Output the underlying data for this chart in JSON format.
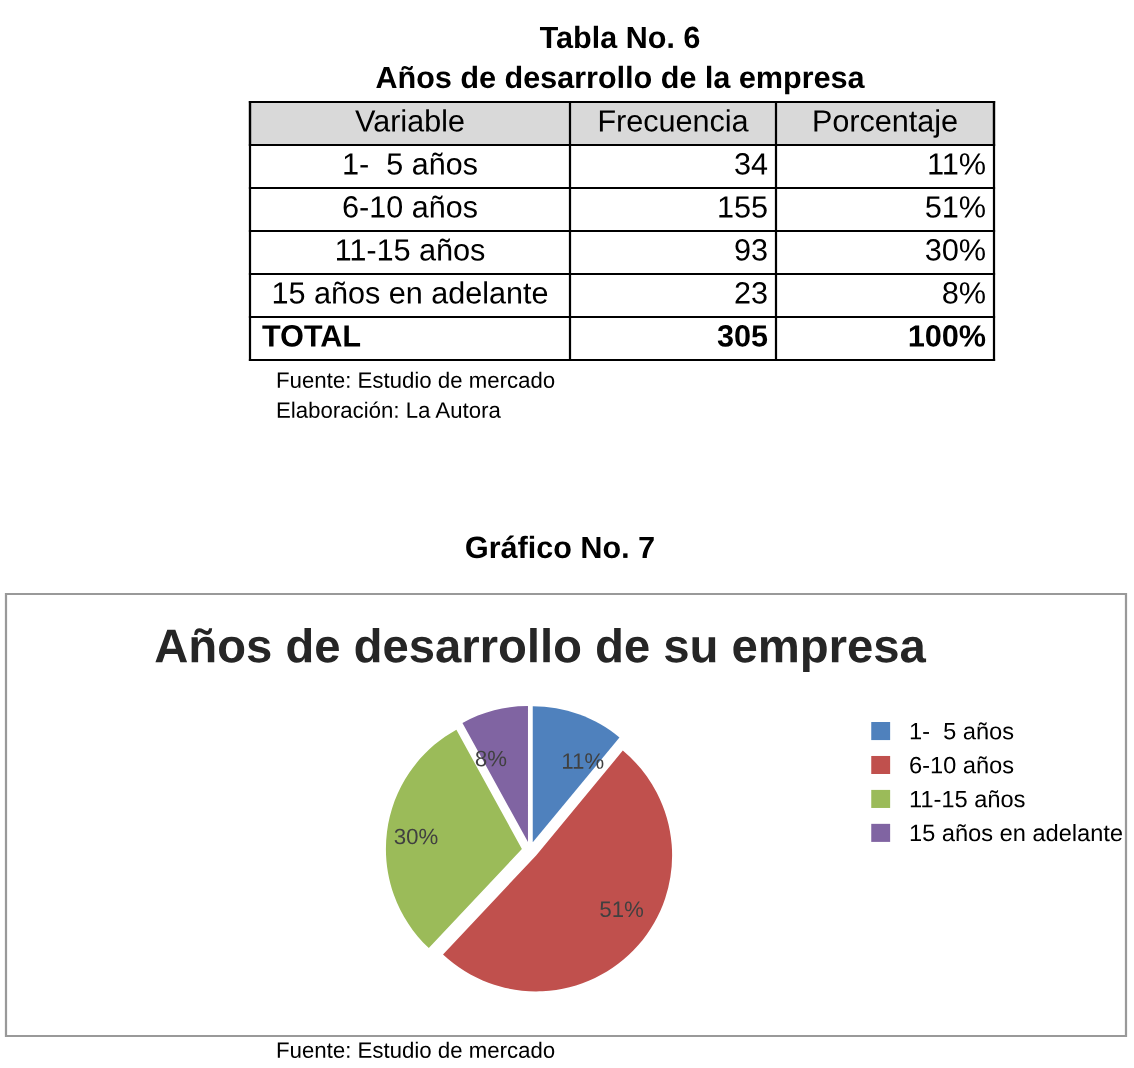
{
  "chart_data": [
    {
      "type": "other",
      "title": "Tabla No. 6",
      "subtitle": "Años de desarrollo de la empresa",
      "categories": [
        "Variable",
        "Frecuencia",
        "Porcentaje"
      ],
      "annotations": [
        "1-  5 años",
        "34",
        "11%",
        "6-10 años",
        "155",
        "51%",
        "11-15 años",
        "93",
        "30%",
        "15 años en adelante",
        "23",
        "8%",
        "TOTAL",
        "305",
        "100%",
        "Fuente: Estudio de mercado",
        "Elaboración: La Autora"
      ]
    },
    {
      "type": "pie",
      "title": "Gráfico No. 7",
      "subtitle": "Años de desarrollo de su empresa",
      "categories": [
        "1-  5 años",
        "6-10 años",
        "11-15 años",
        "15 años en adelante"
      ],
      "values": [
        11,
        51,
        30,
        8
      ],
      "colors": [
        "#4f81bd",
        "#c0504d",
        "#9bbb59",
        "#8064a2"
      ],
      "value_labels": [
        "11%",
        "51%",
        "30%",
        "8%"
      ],
      "legend": "right",
      "annotations": [
        "Fuente: Estudio de mercado"
      ]
    }
  ]
}
